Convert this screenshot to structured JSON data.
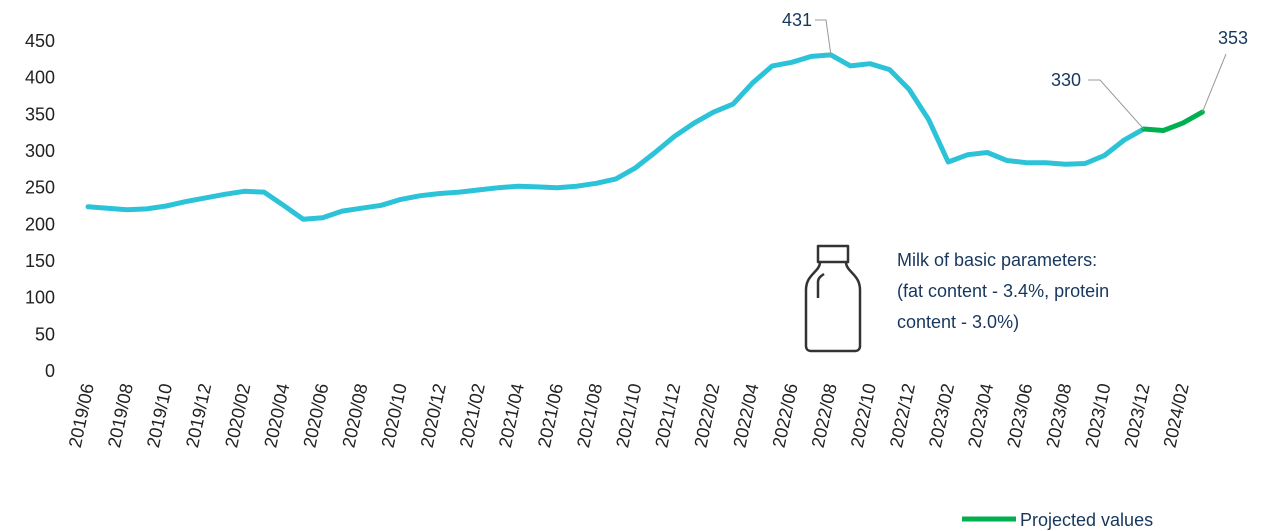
{
  "chart_data": {
    "type": "line",
    "categories": [
      "2019/06",
      null,
      "2019/08",
      null,
      "2019/10",
      null,
      "2019/12",
      null,
      "2020/02",
      null,
      "2020/04",
      null,
      "2020/06",
      null,
      "2020/08",
      null,
      "2020/10",
      null,
      "2020/12",
      null,
      "2021/02",
      null,
      "2021/04",
      null,
      "2021/06",
      null,
      "2021/08",
      null,
      "2021/10",
      null,
      "2021/12",
      null,
      "2022/02",
      null,
      "2022/04",
      null,
      "2022/06",
      null,
      "2022/08",
      null,
      "2022/10",
      null,
      "2022/12",
      null,
      "2023/02",
      null,
      "2023/04",
      null,
      "2023/06",
      null,
      "2023/08",
      null,
      "2023/10",
      null,
      "2023/12",
      null,
      "2024/02",
      null
    ],
    "series": [
      {
        "color": "#2cc3d9",
        "values": [
          224,
          222,
          220,
          221,
          225,
          231,
          236,
          241,
          245,
          244,
          226,
          207,
          209,
          218,
          222,
          226,
          234,
          239,
          242,
          244,
          247,
          250,
          252,
          251,
          250,
          252,
          256,
          262,
          277,
          298,
          320,
          338,
          353,
          364,
          393,
          416,
          421,
          429,
          431,
          416,
          419,
          411,
          384,
          343,
          285,
          295,
          298,
          287,
          284,
          284,
          282,
          283,
          294,
          315,
          330,
          null,
          null,
          null
        ]
      },
      {
        "name": "Projected values",
        "color": "#00b050",
        "values": [
          null,
          null,
          null,
          null,
          null,
          null,
          null,
          null,
          null,
          null,
          null,
          null,
          null,
          null,
          null,
          null,
          null,
          null,
          null,
          null,
          null,
          null,
          null,
          null,
          null,
          null,
          null,
          null,
          null,
          null,
          null,
          null,
          null,
          null,
          null,
          null,
          null,
          null,
          null,
          null,
          null,
          null,
          null,
          null,
          null,
          null,
          null,
          null,
          null,
          null,
          null,
          null,
          null,
          null,
          330,
          328,
          338,
          353
        ]
      }
    ],
    "ylim": [
      0,
      450
    ],
    "yticks": [
      0,
      50,
      100,
      150,
      200,
      250,
      300,
      350,
      400,
      450
    ],
    "note": [
      "Milk of basic parameters:",
      "(fat content - 3.4%, protein",
      "content - 3.0%)"
    ],
    "legend": "bottom-right"
  }
}
